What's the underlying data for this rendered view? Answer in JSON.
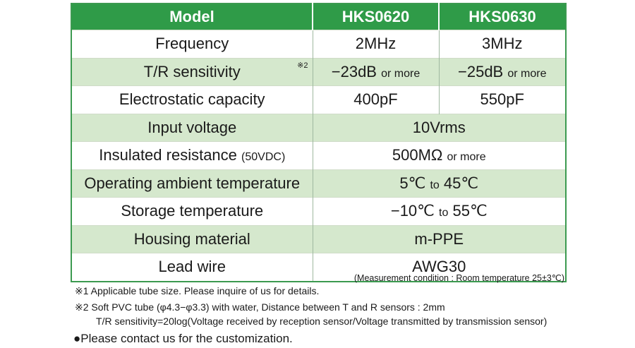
{
  "table": {
    "headers": [
      "Model",
      "HKS0620",
      "HKS0630"
    ],
    "rows": {
      "frequency": {
        "label": "Frequency",
        "v1": "2MHz",
        "v2": "3MHz"
      },
      "tr_sensitivity": {
        "label": "T/R sensitivity",
        "note": "※2",
        "v1": "−23dB",
        "v1_suffix": "or more",
        "v2": "−25dB",
        "v2_suffix": "or more"
      },
      "capacity": {
        "label": "Electrostatic capacity",
        "v1": "400pF",
        "v2": "550pF"
      },
      "input_voltage": {
        "label": "Input voltage",
        "value": "10Vrms"
      },
      "insulated_resistance": {
        "label": "Insulated resistance",
        "label_suffix": "(50VDC)",
        "value": "500MΩ",
        "value_suffix": "or more"
      },
      "operating_temp": {
        "label": "Operating ambient temperature",
        "from": "5℃",
        "to_word": "to",
        "to": "45℃"
      },
      "storage_temp": {
        "label": "Storage temperature",
        "from": "−10℃",
        "to_word": "to",
        "to": "55℃"
      },
      "housing": {
        "label": "Housing material",
        "value": "m-PPE"
      },
      "lead_wire": {
        "label": "Lead wire",
        "value": "AWG30"
      }
    }
  },
  "condition": "(Measurement condition : Room temperature 25±3℃)",
  "notes": {
    "n1": "※1 Applicable tube size. Please inquire of us for details.",
    "n2": "※2 Soft PVC tube (φ4.3−φ3.3) with water,  Distance between T and R sensors : 2mm",
    "n2_line2": "T/R sensitivity=20log(Voltage received by reception sensor/Voltage transmitted by transmission sensor)"
  },
  "contact": "●Please contact us for the customization."
}
